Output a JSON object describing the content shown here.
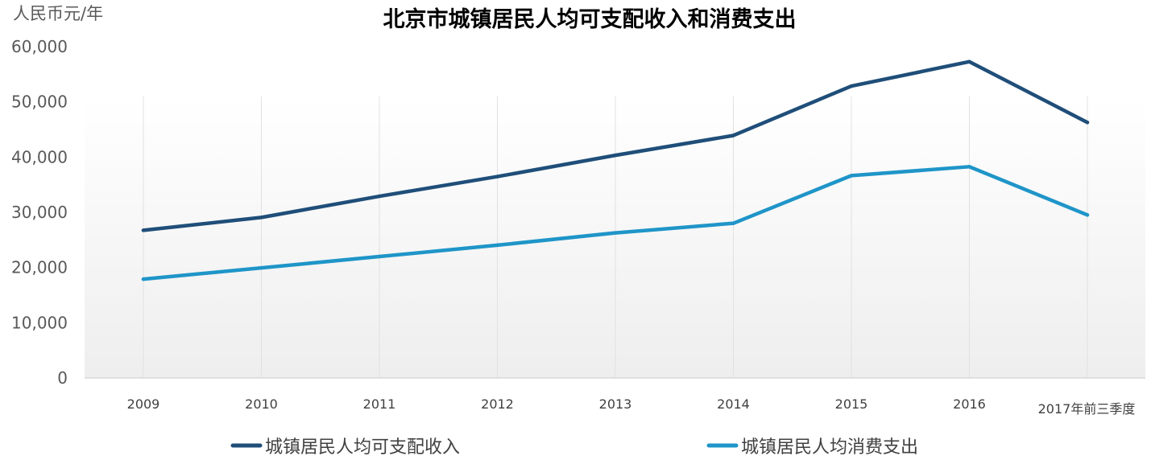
{
  "chart_data": {
    "type": "line",
    "title": "北京市城镇居民人均可支配收入和消费支出",
    "unit_label": "人民币元/年",
    "xlabel": "",
    "ylabel": "人民币元/年",
    "ylim": [
      0,
      60000
    ],
    "yticks": [
      0,
      10000,
      20000,
      30000,
      40000,
      50000,
      60000
    ],
    "ytick_labels": [
      "0",
      "10,000",
      "20,000",
      "30,000",
      "40,000",
      "50,000",
      "60,000"
    ],
    "categories": [
      "2009",
      "2010",
      "2011",
      "2012",
      "2013",
      "2014",
      "2015",
      "2016",
      "2017年前三季度"
    ],
    "grid": "vertical",
    "legend_position": "bottom",
    "series": [
      {
        "name": "城镇居民人均可支配收入",
        "color": "#1F4E79",
        "values": [
          26738,
          29073,
          32903,
          36469,
          40321,
          43910,
          52859,
          57275,
          46283
        ]
      },
      {
        "name": "城镇居民人均消费支出",
        "color": "#1F95C8",
        "values": [
          17893,
          19934,
          21984,
          24046,
          26275,
          28009,
          36642,
          38256,
          29516
        ]
      }
    ]
  }
}
